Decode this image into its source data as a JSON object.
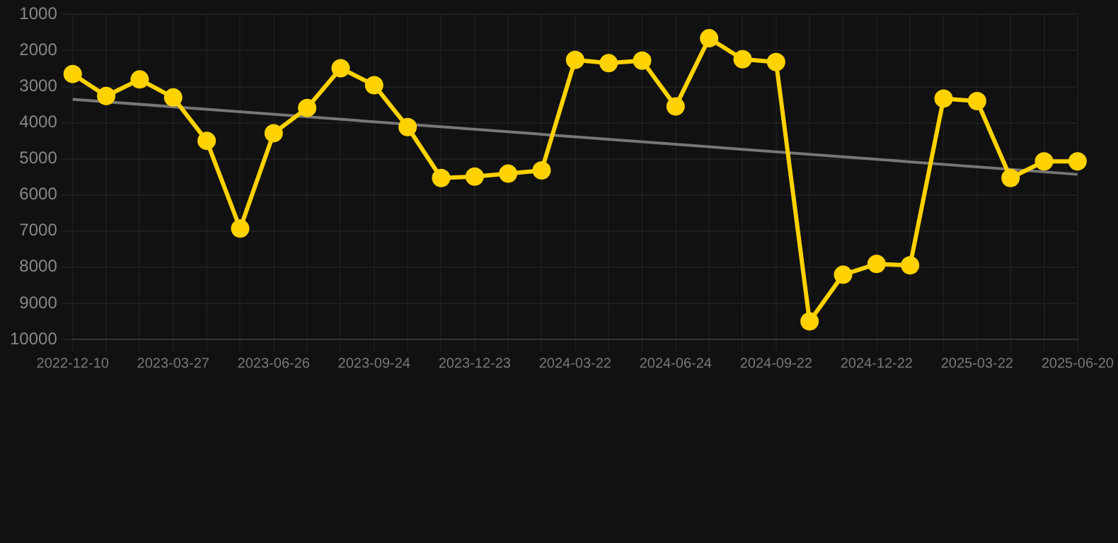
{
  "chart_data": {
    "type": "line",
    "categories": [
      "2022-12-10",
      null,
      null,
      "2023-03-27",
      null,
      null,
      "2023-06-26",
      null,
      null,
      "2023-09-24",
      null,
      null,
      "2023-12-23",
      null,
      null,
      "2024-03-22",
      null,
      null,
      "2024-06-24",
      null,
      null,
      "2024-09-22",
      null,
      null,
      "2024-12-22",
      null,
      null,
      "2025-03-22",
      null,
      null,
      "2025-06-20"
    ],
    "series": [
      {
        "color": "#ffd200",
        "marker": "circle",
        "values": [
          2650,
          3260,
          2800,
          3300,
          4500,
          6930,
          4290,
          3590,
          2490,
          2960,
          4120,
          5530,
          5490,
          5410,
          5320,
          2260,
          2350,
          2280,
          3550,
          1660,
          2240,
          2320,
          9500,
          8210,
          7910,
          7950,
          3330,
          3400,
          5530,
          5070,
          5070
        ]
      },
      {
        "type": "line",
        "color": "#777777",
        "marker": "none",
        "values": [
          3350,
          null,
          null,
          null,
          null,
          null,
          null,
          null,
          null,
          null,
          null,
          null,
          null,
          null,
          null,
          null,
          null,
          null,
          null,
          null,
          null,
          null,
          null,
          null,
          null,
          null,
          null,
          null,
          null,
          null,
          5430
        ]
      }
    ],
    "ylim": [
      10000,
      1000
    ],
    "yticks": [
      1000,
      2000,
      3000,
      4000,
      5000,
      6000,
      7000,
      8000,
      9000,
      10000
    ],
    "grid": true,
    "legend": false
  }
}
